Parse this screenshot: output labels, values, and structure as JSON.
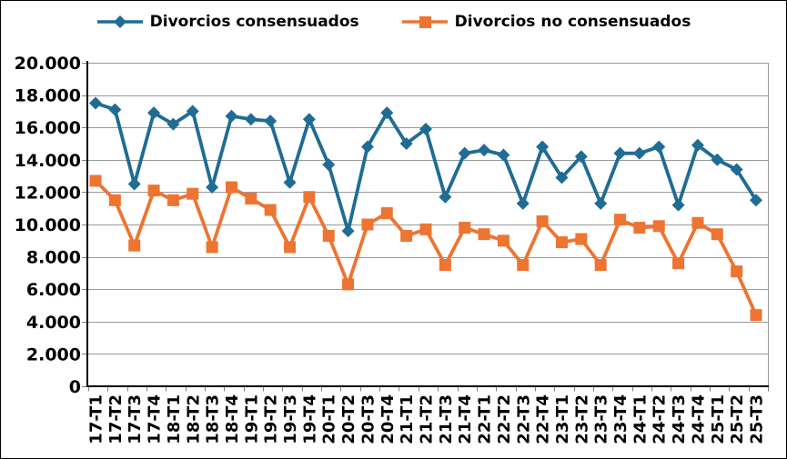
{
  "chart_data": {
    "type": "line",
    "title": "",
    "xlabel": "",
    "ylabel": "",
    "categories": [
      "17-T1",
      "17-T2",
      "17-T3",
      "17-T4",
      "18-T1",
      "18-T2",
      "18-T3",
      "18-T4",
      "19-T1",
      "19-T2",
      "19-T3",
      "19-T4",
      "20-T1",
      "20-T2",
      "20-T3",
      "20-T4",
      "21-T1",
      "21-T2",
      "21-T3",
      "21-T4",
      "22-T1",
      "22-T2",
      "22-T3",
      "22-T4",
      "23-T1",
      "23-T2",
      "23-T3",
      "23-T4",
      "24-T1",
      "24-T2",
      "24-T3",
      "24-T4",
      "25-T1",
      "25-T2",
      "25-T3"
    ],
    "series": [
      {
        "name": "Divorcios consensuados",
        "color": "#1F6C94",
        "marker": "diamond",
        "values": [
          17500,
          17100,
          12500,
          16900,
          16200,
          17000,
          12300,
          16700,
          16500,
          16400,
          12600,
          16500,
          13700,
          9600,
          14800,
          16900,
          15000,
          15900,
          11700,
          14400,
          14600,
          14300,
          11300,
          14800,
          12900,
          14200,
          11300,
          14400,
          14400,
          14800,
          11200,
          14900,
          14000,
          13400,
          11500
        ]
      },
      {
        "name": "Divorcios no consensuados",
        "color": "#ED7431",
        "marker": "square",
        "values": [
          12700,
          11500,
          8700,
          12100,
          11500,
          11900,
          8600,
          12300,
          11600,
          10900,
          8600,
          11700,
          9300,
          6300,
          10000,
          10700,
          9300,
          9700,
          7500,
          9800,
          9400,
          9000,
          7500,
          10200,
          8900,
          9100,
          7500,
          10300,
          9800,
          9900,
          7600,
          10100,
          9400,
          7100,
          4400
        ]
      }
    ],
    "ylim": [
      0,
      20000
    ],
    "ytick_step": 2000,
    "ytick_labels": [
      "0",
      "2.000",
      "4.000",
      "6.000",
      "8.000",
      "10.000",
      "12.000",
      "14.000",
      "16.000",
      "18.000",
      "20.000"
    ],
    "grid": true,
    "legend_position": "top",
    "x_label_rotation": -90
  },
  "colors": {
    "gridline": "#999999",
    "axis": "#000000",
    "tick": "#808080",
    "text": "#000000",
    "background": "#FFFFFF"
  }
}
